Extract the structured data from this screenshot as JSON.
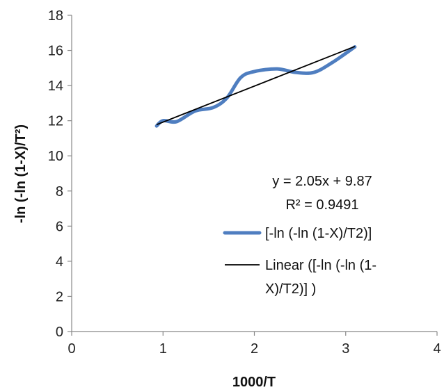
{
  "chart_data": {
    "type": "line",
    "xlabel": "1000/T",
    "ylabel": "-ln (-ln (1-X)/T²)",
    "xlim": [
      0,
      4
    ],
    "ylim": [
      0,
      18
    ],
    "x_ticks": [
      0,
      1,
      2,
      3,
      4
    ],
    "y_ticks": [
      0,
      2,
      4,
      6,
      8,
      10,
      12,
      14,
      16,
      18
    ],
    "grid": false,
    "legend_position": "right",
    "series": [
      {
        "name": "[-ln (-ln (1-X)/T2)]",
        "color": "#4f7ec0",
        "x": [
          0.93,
          1.0,
          1.15,
          1.35,
          1.55,
          1.7,
          1.85,
          2.0,
          2.25,
          2.45,
          2.65,
          2.85,
          3.1
        ],
        "y": [
          11.7,
          12.0,
          11.95,
          12.55,
          12.75,
          13.3,
          14.45,
          14.8,
          14.95,
          14.75,
          14.75,
          15.3,
          16.2
        ]
      }
    ],
    "trendline": {
      "legend_lines": [
        "Linear ([-ln (-ln (1-",
        "X)/T2)] )"
      ],
      "color": "#000000",
      "x": [
        0.93,
        3.1
      ],
      "slope": 2.05,
      "intercept": 9.87
    },
    "annotations": {
      "equation": "y = 2.05x + 9.87",
      "r_squared": "R² = 0.9491"
    }
  }
}
